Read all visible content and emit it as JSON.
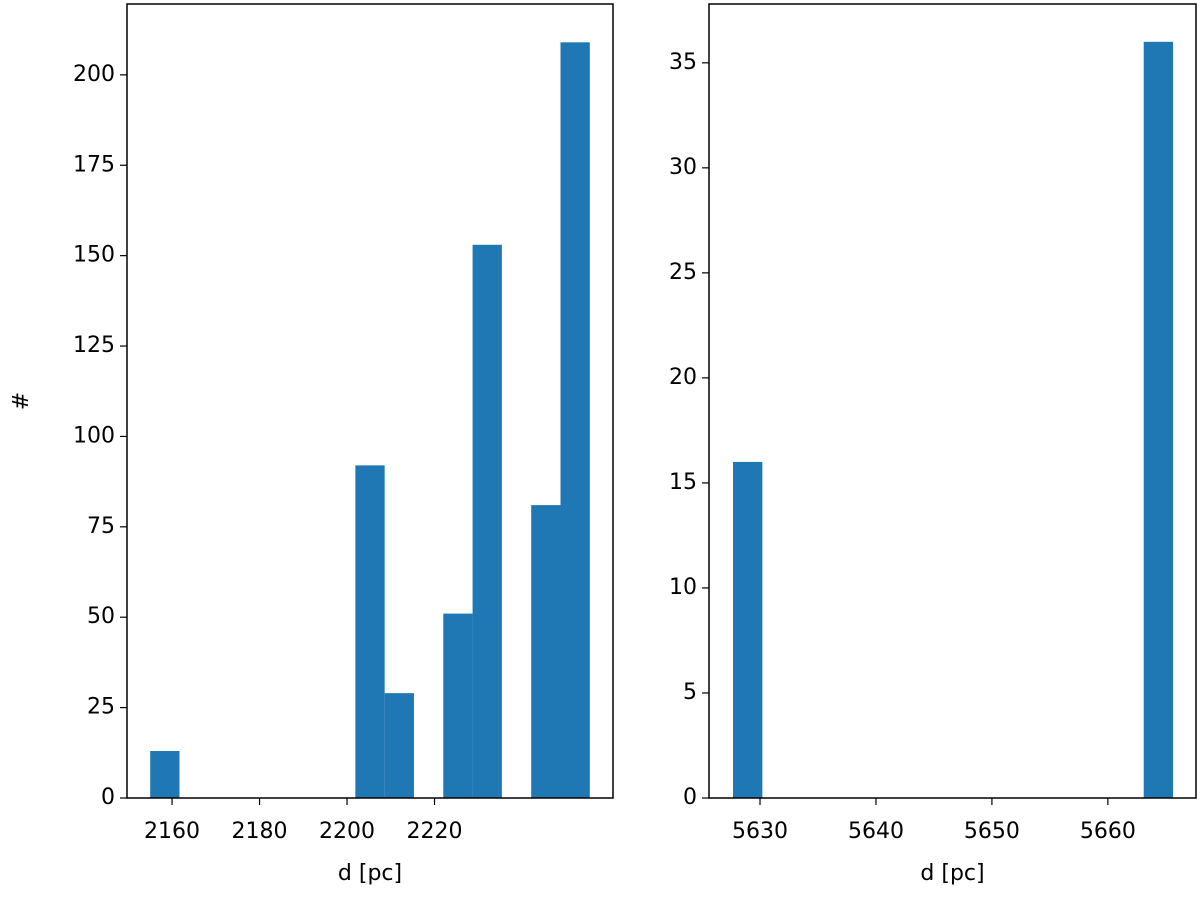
{
  "chart_data": [
    {
      "type": "histogram",
      "xlabel": "d [pc]",
      "ylabel": "#",
      "color": "#1f77b4",
      "bins": [
        2155,
        2161.7,
        2168.4,
        2175.1,
        2181.8,
        2188.5,
        2195.2,
        2201.9,
        2208.6,
        2215.3,
        2222,
        2228.7,
        2235.4,
        2242.1,
        2248.8,
        2255.5
      ],
      "values": [
        13,
        0,
        0,
        0,
        0,
        0,
        0,
        92,
        29,
        0,
        51,
        153,
        0,
        81,
        209
      ],
      "xlim": [
        2149.7,
        2260.8
      ],
      "xticks": [
        2160,
        2180,
        2200,
        2220
      ],
      "ylim": [
        0,
        219.6
      ],
      "yticks": [
        0,
        25,
        50,
        75,
        100,
        125,
        150,
        175,
        200
      ]
    },
    {
      "type": "histogram",
      "xlabel": "d [pc]",
      "color": "#1f77b4",
      "bins": [
        5627.67,
        5630.2,
        5632.73,
        5635.26,
        5637.79,
        5640.32,
        5642.85,
        5645.38,
        5647.91,
        5650.44,
        5652.97,
        5655.5,
        5658.03,
        5660.56,
        5663.09,
        5665.62
      ],
      "values": [
        16,
        0,
        0,
        0,
        0,
        0,
        0,
        0,
        0,
        0,
        0,
        0,
        0,
        0,
        36
      ],
      "xlim": [
        5625.6,
        5667.6
      ],
      "xticks": [
        5630,
        5640,
        5650,
        5660
      ],
      "ylim": [
        0,
        37.8
      ],
      "yticks": [
        0,
        5,
        10,
        15,
        20,
        25,
        30,
        35
      ]
    }
  ]
}
